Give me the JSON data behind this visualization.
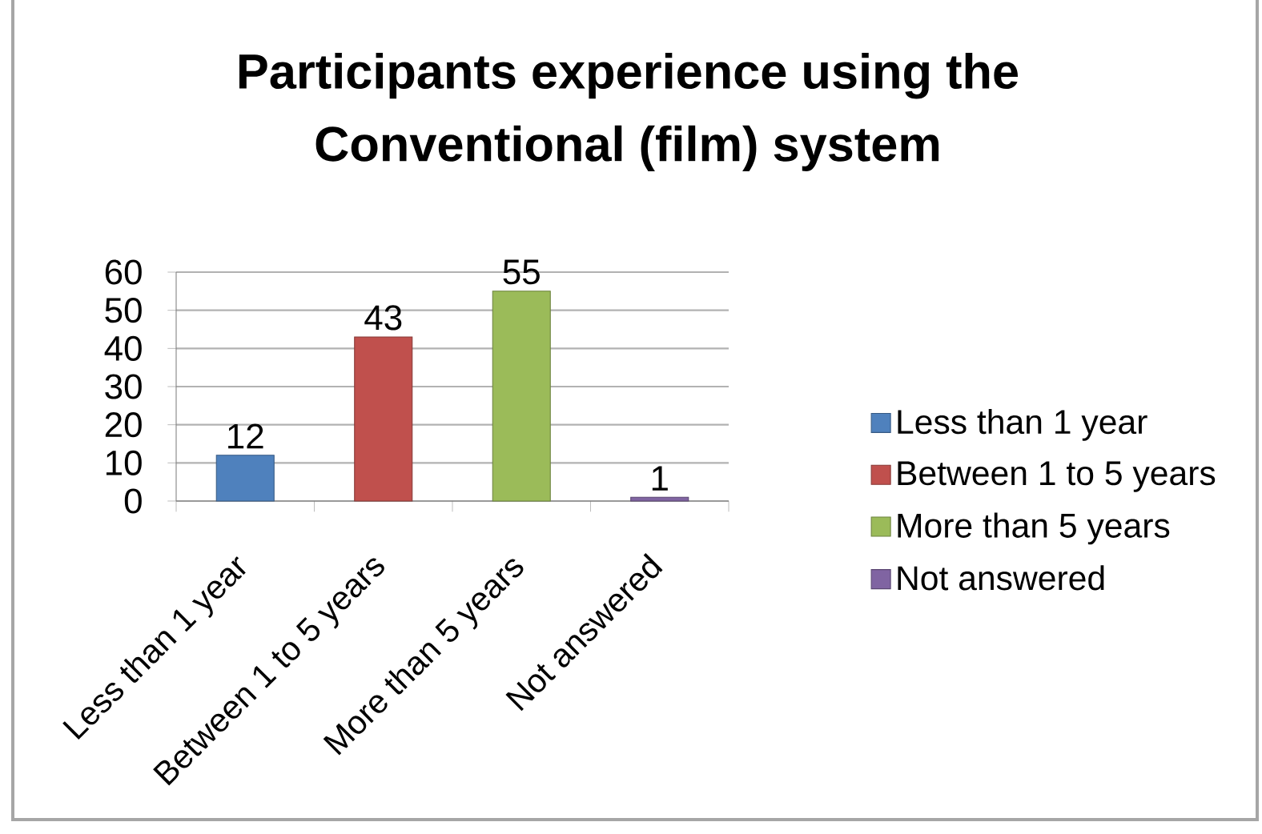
{
  "chart_data": {
    "type": "bar",
    "title": "Participants experience using the Conventional (film) system",
    "categories": [
      "Less than 1 year",
      "Between 1 to 5 years",
      "More than 5 years",
      "Not answered"
    ],
    "series": [
      {
        "name": "Less than 1 year",
        "color": "#4f81bd",
        "values": [
          12,
          null,
          null,
          null
        ]
      },
      {
        "name": "Between 1 to 5 years",
        "color": "#c0504d",
        "values": [
          null,
          43,
          null,
          null
        ]
      },
      {
        "name": "More than 5 years",
        "color": "#9bbb59",
        "values": [
          null,
          null,
          55,
          null
        ]
      },
      {
        "name": "Not answered",
        "color": "#8064a2",
        "values": [
          null,
          null,
          null,
          1
        ]
      }
    ],
    "ylim": [
      0,
      60
    ],
    "yticks": [
      0,
      10,
      20,
      30,
      40,
      50,
      60
    ],
    "grid": "y",
    "legend": "right",
    "data_labels": true
  }
}
